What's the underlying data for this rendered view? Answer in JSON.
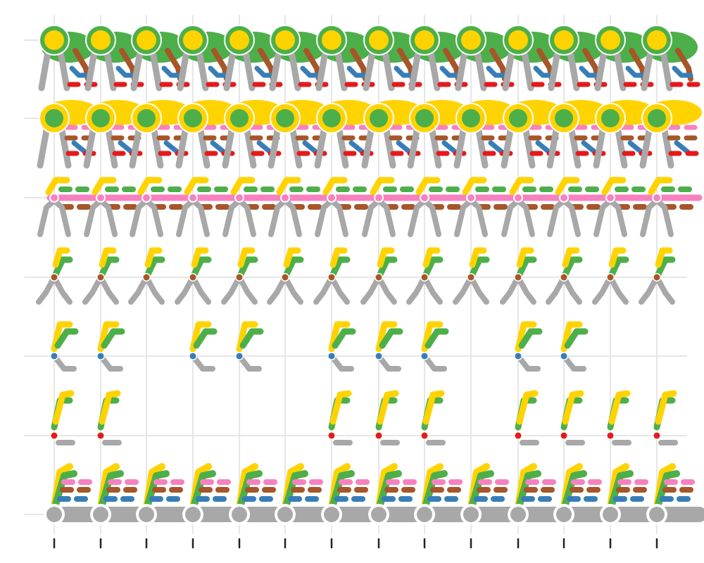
{
  "chart_data": {
    "type": "scatter",
    "title": "",
    "xlabel": "",
    "ylabel": "",
    "grid": true,
    "x_ticks": [
      "",
      "",
      "",
      "",
      "",
      "",
      "",
      "",
      "",
      "",
      "",
      "",
      "",
      ""
    ],
    "y_ticks": [
      "",
      "",
      "",
      "",
      "",
      "",
      ""
    ],
    "colors": {
      "grid": "#e6e6e6",
      "tick": "#222222",
      "yellow": "#FFD300",
      "green": "#4DAF4A",
      "brown": "#A65628",
      "blue": "#377EB8",
      "red": "#E41A1C",
      "pink": "#F781BF",
      "gray": "#A8A8A8"
    },
    "rows": [
      {
        "row": 1,
        "node_color": "yellow",
        "node_size": "large",
        "ring": "green",
        "present": [
          1,
          1,
          1,
          1,
          1,
          1,
          1,
          1,
          1,
          1,
          1,
          1,
          1,
          1
        ]
      },
      {
        "row": 2,
        "node_color": "green",
        "node_size": "large",
        "ring": "yellow",
        "present": [
          1,
          1,
          1,
          1,
          1,
          1,
          1,
          1,
          1,
          1,
          1,
          1,
          1,
          1
        ]
      },
      {
        "row": 3,
        "node_color": "pink",
        "node_size": "small",
        "ring": "none",
        "present": [
          1,
          1,
          1,
          1,
          1,
          1,
          1,
          1,
          1,
          1,
          1,
          1,
          1,
          1
        ]
      },
      {
        "row": 4,
        "node_color": "brown",
        "node_size": "small",
        "ring": "none",
        "present": [
          1,
          1,
          1,
          1,
          1,
          1,
          1,
          1,
          1,
          1,
          1,
          1,
          1,
          1
        ]
      },
      {
        "row": 5,
        "node_color": "blue",
        "node_size": "small",
        "ring": "none",
        "present": [
          1,
          1,
          0,
          1,
          1,
          0,
          1,
          1,
          1,
          0,
          1,
          1,
          0,
          0
        ]
      },
      {
        "row": 6,
        "node_color": "red",
        "node_size": "small",
        "ring": "none",
        "present": [
          1,
          1,
          0,
          0,
          0,
          0,
          1,
          1,
          1,
          0,
          1,
          1,
          1,
          1
        ]
      },
      {
        "row": 7,
        "node_color": "gray",
        "node_size": "large",
        "ring": "none",
        "present": [
          1,
          1,
          1,
          1,
          1,
          1,
          1,
          1,
          1,
          1,
          1,
          1,
          1,
          1
        ]
      }
    ]
  }
}
